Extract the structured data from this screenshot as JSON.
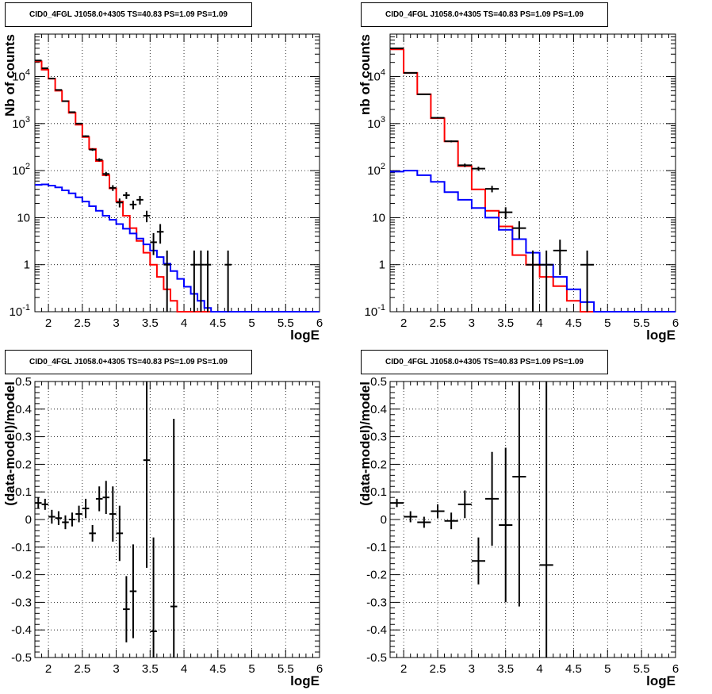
{
  "chart_data": [
    {
      "type": "line",
      "title": "CID0_4FGL J1058.0+4305 TS=40.83 PS=1.09 PS=1.09",
      "xlabel": "logE",
      "ylabel": "Nb of counts",
      "xlim": [
        1.8,
        6.0
      ],
      "ylim": [
        0.1,
        80000
      ],
      "yscale": "log",
      "xticks": [
        "2",
        "2.5",
        "3",
        "3.5",
        "4",
        "4.5",
        "5",
        "5.5",
        "6"
      ],
      "yticks": [
        "10^-1",
        "1",
        "10",
        "10^2",
        "10^3",
        "10^4"
      ],
      "grid": true,
      "bin_edges": [
        1.8,
        1.9,
        2.0,
        2.1,
        2.2,
        2.3,
        2.4,
        2.5,
        2.6,
        2.7,
        2.8,
        2.9,
        3.0,
        3.1,
        3.2,
        3.3,
        3.4,
        3.5,
        3.6,
        3.7,
        3.8,
        3.9,
        4.0,
        4.1,
        4.2,
        4.3,
        4.4,
        4.5,
        4.6,
        4.7,
        4.8,
        4.9,
        5.0,
        5.1,
        5.2,
        5.3,
        5.4,
        5.5,
        5.6,
        5.7,
        5.8,
        5.9,
        6.0
      ],
      "series": [
        {
          "color": "#ff0000",
          "kind": "step",
          "values": [
            21000,
            14000,
            9000,
            5000,
            3000,
            1700,
            950,
            520,
            290,
            160,
            80,
            42,
            22,
            11,
            6,
            3.2,
            1.8,
            1.0,
            0.55,
            0.3,
            0.17,
            0.1,
            0.1,
            0.1,
            0.1,
            0.1,
            0.1,
            0.1,
            0.1,
            0.1,
            0.1,
            0.1,
            0.1,
            0.1,
            0.1,
            0.1,
            0.1,
            0.1,
            0.1,
            0.1,
            0.1,
            0.1
          ]
        },
        {
          "color": "#0000ff",
          "kind": "step",
          "values": [
            50,
            51,
            48,
            44,
            38,
            33,
            27,
            22,
            17.5,
            14,
            11,
            9,
            7.3,
            5.8,
            4.6,
            3.6,
            2.7,
            2.0,
            1.45,
            1.05,
            0.73,
            0.5,
            0.34,
            0.24,
            0.17,
            0.12,
            0.1,
            0.1,
            0.1,
            0.1,
            0.1,
            0.1,
            0.1,
            0.1,
            0.1,
            0.1,
            0.1,
            0.1,
            0.1,
            0.1,
            0.1,
            0.1
          ]
        }
      ],
      "data_points": [
        {
          "x": 1.85,
          "y": 22000,
          "ylo": 21800,
          "yhi": 22200
        },
        {
          "x": 1.95,
          "y": 15000,
          "ylo": 14870,
          "yhi": 15130
        },
        {
          "x": 2.05,
          "y": 9100,
          "ylo": 9000,
          "yhi": 9200
        },
        {
          "x": 2.15,
          "y": 5200,
          "ylo": 5130,
          "yhi": 5270
        },
        {
          "x": 2.25,
          "y": 3000,
          "ylo": 2950,
          "yhi": 3050
        },
        {
          "x": 2.35,
          "y": 1750,
          "ylo": 1710,
          "yhi": 1790
        },
        {
          "x": 2.45,
          "y": 1000,
          "ylo": 970,
          "yhi": 1030
        },
        {
          "x": 2.55,
          "y": 540,
          "ylo": 520,
          "yhi": 560
        },
        {
          "x": 2.65,
          "y": 280,
          "ylo": 263,
          "yhi": 297
        },
        {
          "x": 2.75,
          "y": 170,
          "ylo": 157,
          "yhi": 183
        },
        {
          "x": 2.85,
          "y": 85,
          "ylo": 76,
          "yhi": 94
        },
        {
          "x": 2.95,
          "y": 43,
          "ylo": 37,
          "yhi": 49
        },
        {
          "x": 3.05,
          "y": 21,
          "ylo": 16.5,
          "yhi": 25.5
        },
        {
          "x": 3.15,
          "y": 30,
          "ylo": 25,
          "yhi": 35
        },
        {
          "x": 3.25,
          "y": 19,
          "ylo": 15,
          "yhi": 23
        },
        {
          "x": 3.35,
          "y": 24,
          "ylo": 19,
          "yhi": 29
        },
        {
          "x": 3.45,
          "y": 11,
          "ylo": 8,
          "yhi": 14
        },
        {
          "x": 3.55,
          "y": 3,
          "ylo": 1.6,
          "yhi": 4.7
        },
        {
          "x": 3.65,
          "y": 5,
          "ylo": 2.8,
          "yhi": 7.3
        },
        {
          "x": 3.75,
          "y": 1,
          "ylo": 0.1,
          "yhi": 2.0
        },
        {
          "x": 4.15,
          "y": 1,
          "ylo": 0.1,
          "yhi": 2.0
        },
        {
          "x": 4.25,
          "y": 1,
          "ylo": 0.1,
          "yhi": 2.0
        },
        {
          "x": 4.35,
          "y": 1,
          "ylo": 0.1,
          "yhi": 2.0
        },
        {
          "x": 4.65,
          "y": 1,
          "ylo": 0.1,
          "yhi": 2.0
        }
      ]
    },
    {
      "type": "line",
      "title": "CID0_4FGL J1058.0+4305 TS=40.83 PS=1.09 PS=1.09",
      "xlabel": "logE",
      "ylabel": "nb of counts",
      "xlim": [
        1.8,
        6.0
      ],
      "ylim": [
        0.1,
        80000
      ],
      "yscale": "log",
      "xticks": [
        "2",
        "2.5",
        "3",
        "3.5",
        "4",
        "4.5",
        "5",
        "5.5",
        "6"
      ],
      "yticks": [
        "10^-1",
        "1",
        "10",
        "10^2",
        "10^3",
        "10^4"
      ],
      "grid": true,
      "bin_edges": [
        1.8,
        2.0,
        2.2,
        2.4,
        2.6,
        2.8,
        3.0,
        3.2,
        3.4,
        3.6,
        3.8,
        4.0,
        4.2,
        4.4,
        4.6,
        4.8,
        5.0,
        5.2,
        5.4,
        5.6,
        5.8,
        6.0
      ],
      "series": [
        {
          "color": "#ff0000",
          "kind": "step",
          "values": [
            38000,
            12000,
            4200,
            1300,
            420,
            125,
            40,
            14,
            6.5,
            1.6,
            1.0,
            0.55,
            0.35,
            0.17,
            0.1,
            0.1,
            0.1,
            0.1,
            0.1,
            0.1,
            0.1
          ]
        },
        {
          "color": "#0000ff",
          "kind": "step",
          "values": [
            95,
            100,
            80,
            58,
            35,
            24,
            16,
            10,
            5.5,
            3.5,
            1.8,
            1.0,
            0.55,
            0.3,
            0.16,
            0.1,
            0.1,
            0.1,
            0.1,
            0.1,
            0.1
          ]
        }
      ],
      "data_points": [
        {
          "x": 1.9,
          "y": 40000,
          "ylo": 39600,
          "yhi": 40400
        },
        {
          "x": 2.1,
          "y": 12000,
          "ylo": 11890,
          "yhi": 12110
        },
        {
          "x": 2.3,
          "y": 4200,
          "ylo": 4135,
          "yhi": 4265
        },
        {
          "x": 2.5,
          "y": 1330,
          "ylo": 1294,
          "yhi": 1366
        },
        {
          "x": 2.7,
          "y": 420,
          "ylo": 400,
          "yhi": 440
        },
        {
          "x": 2.9,
          "y": 130,
          "ylo": 119,
          "yhi": 141
        },
        {
          "x": 3.1,
          "y": 110,
          "ylo": 99,
          "yhi": 121
        },
        {
          "x": 3.3,
          "y": 41,
          "ylo": 34.6,
          "yhi": 47.4
        },
        {
          "x": 3.5,
          "y": 13,
          "ylo": 9.4,
          "yhi": 16.6
        },
        {
          "x": 3.7,
          "y": 6,
          "ylo": 3.6,
          "yhi": 8.4
        },
        {
          "x": 3.9,
          "y": 1,
          "ylo": 0.1,
          "yhi": 2.0
        },
        {
          "x": 4.1,
          "y": 1,
          "ylo": 0.1,
          "yhi": 2.0
        },
        {
          "x": 4.3,
          "y": 2,
          "ylo": 0.6,
          "yhi": 3.4
        },
        {
          "x": 4.7,
          "y": 1,
          "ylo": 0.1,
          "yhi": 2.0
        }
      ]
    },
    {
      "type": "scatter",
      "title": "CID0_4FGL J1058.0+4305 TS=40.83 PS=1.09 PS=1.09",
      "xlabel": "logE",
      "ylabel": "(data-model)/model",
      "xlim": [
        1.8,
        6.0
      ],
      "ylim": [
        -0.5,
        0.5
      ],
      "xticks": [
        "2",
        "2.5",
        "3",
        "3.5",
        "4",
        "4.5",
        "5",
        "5.5",
        "6"
      ],
      "yticks": [
        "-0.5",
        "-0.4",
        "-0.3",
        "-0.2",
        "-0.1",
        "0",
        "0.1",
        "0.2",
        "0.3",
        "0.4",
        "0.5"
      ],
      "grid": true,
      "bin_width": 0.1,
      "points": [
        {
          "x": 1.85,
          "y": 0.06,
          "err": 0.02
        },
        {
          "x": 1.95,
          "y": 0.055,
          "err": 0.02
        },
        {
          "x": 2.05,
          "y": 0.01,
          "err": 0.025
        },
        {
          "x": 2.15,
          "y": 0.005,
          "err": 0.025
        },
        {
          "x": 2.25,
          "y": -0.01,
          "err": 0.025
        },
        {
          "x": 2.35,
          "y": 0.0,
          "err": 0.025
        },
        {
          "x": 2.45,
          "y": 0.02,
          "err": 0.03
        },
        {
          "x": 2.55,
          "y": 0.04,
          "err": 0.035
        },
        {
          "x": 2.65,
          "y": -0.05,
          "err": 0.03
        },
        {
          "x": 2.75,
          "y": 0.075,
          "err": 0.045
        },
        {
          "x": 2.85,
          "y": 0.08,
          "err": 0.06
        },
        {
          "x": 2.95,
          "y": 0.02,
          "err": 0.1
        },
        {
          "x": 3.05,
          "y": -0.05,
          "err": 0.1
        },
        {
          "x": 3.15,
          "y": -0.325,
          "err": 0.12
        },
        {
          "x": 3.25,
          "y": -0.26,
          "err": 0.17
        },
        {
          "x": 3.45,
          "y": 0.215,
          "err": 0.39
        },
        {
          "x": 3.55,
          "y": -0.405,
          "err": 0.34
        },
        {
          "x": 3.85,
          "y": -0.315,
          "err": 0.68
        }
      ]
    },
    {
      "type": "scatter",
      "title": "CID0_4FGL J1058.0+4305 TS=40.83 PS=1.09 PS=1.09",
      "xlabel": "logE",
      "ylabel": "(data-model)/model",
      "xlim": [
        1.8,
        6.0
      ],
      "ylim": [
        -0.5,
        0.5
      ],
      "xticks": [
        "2",
        "2.5",
        "3",
        "3.5",
        "4",
        "4.5",
        "5",
        "5.5",
        "6"
      ],
      "yticks": [
        "-0.5",
        "-0.4",
        "-0.3",
        "-0.2",
        "-0.1",
        "0",
        "0.1",
        "0.2",
        "0.3",
        "0.4",
        "0.5"
      ],
      "grid": true,
      "bin_width": 0.2,
      "points": [
        {
          "x": 1.9,
          "y": 0.06,
          "err": 0.015
        },
        {
          "x": 2.1,
          "y": 0.01,
          "err": 0.02
        },
        {
          "x": 2.3,
          "y": -0.01,
          "err": 0.02
        },
        {
          "x": 2.5,
          "y": 0.03,
          "err": 0.025
        },
        {
          "x": 2.7,
          "y": -0.005,
          "err": 0.03
        },
        {
          "x": 2.9,
          "y": 0.055,
          "err": 0.05
        },
        {
          "x": 3.1,
          "y": -0.15,
          "err": 0.085
        },
        {
          "x": 3.3,
          "y": 0.075,
          "err": 0.17
        },
        {
          "x": 3.5,
          "y": -0.02,
          "err": 0.28
        },
        {
          "x": 3.7,
          "y": 0.155,
          "err": 0.47
        },
        {
          "x": 4.1,
          "y": -0.165,
          "err": 1.0
        }
      ]
    }
  ]
}
